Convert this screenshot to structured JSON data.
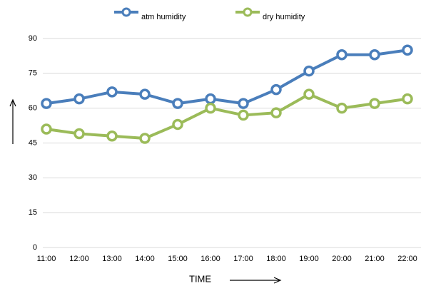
{
  "chart_data": {
    "type": "line",
    "x_label": "TIME",
    "categories": [
      "11:00",
      "12:00",
      "13:00",
      "14:00",
      "15:00",
      "16:00",
      "17:00",
      "18:00",
      "19:00",
      "20:00",
      "21:00",
      "22:00"
    ],
    "series": [
      {
        "name": "atm humidity",
        "color": "#4a7ebb",
        "values": [
          62,
          64,
          67,
          66,
          62,
          64,
          62,
          68,
          76,
          83,
          83,
          85
        ]
      },
      {
        "name": "dry humidity",
        "color": "#9bbb59",
        "values": [
          51,
          49,
          48,
          47,
          53,
          60,
          57,
          58,
          66,
          60,
          62,
          64
        ]
      }
    ],
    "ylim": [
      0,
      90
    ],
    "yticks": [
      0,
      15,
      30,
      45,
      60,
      75,
      90
    ],
    "grid": true,
    "legend": "top"
  }
}
